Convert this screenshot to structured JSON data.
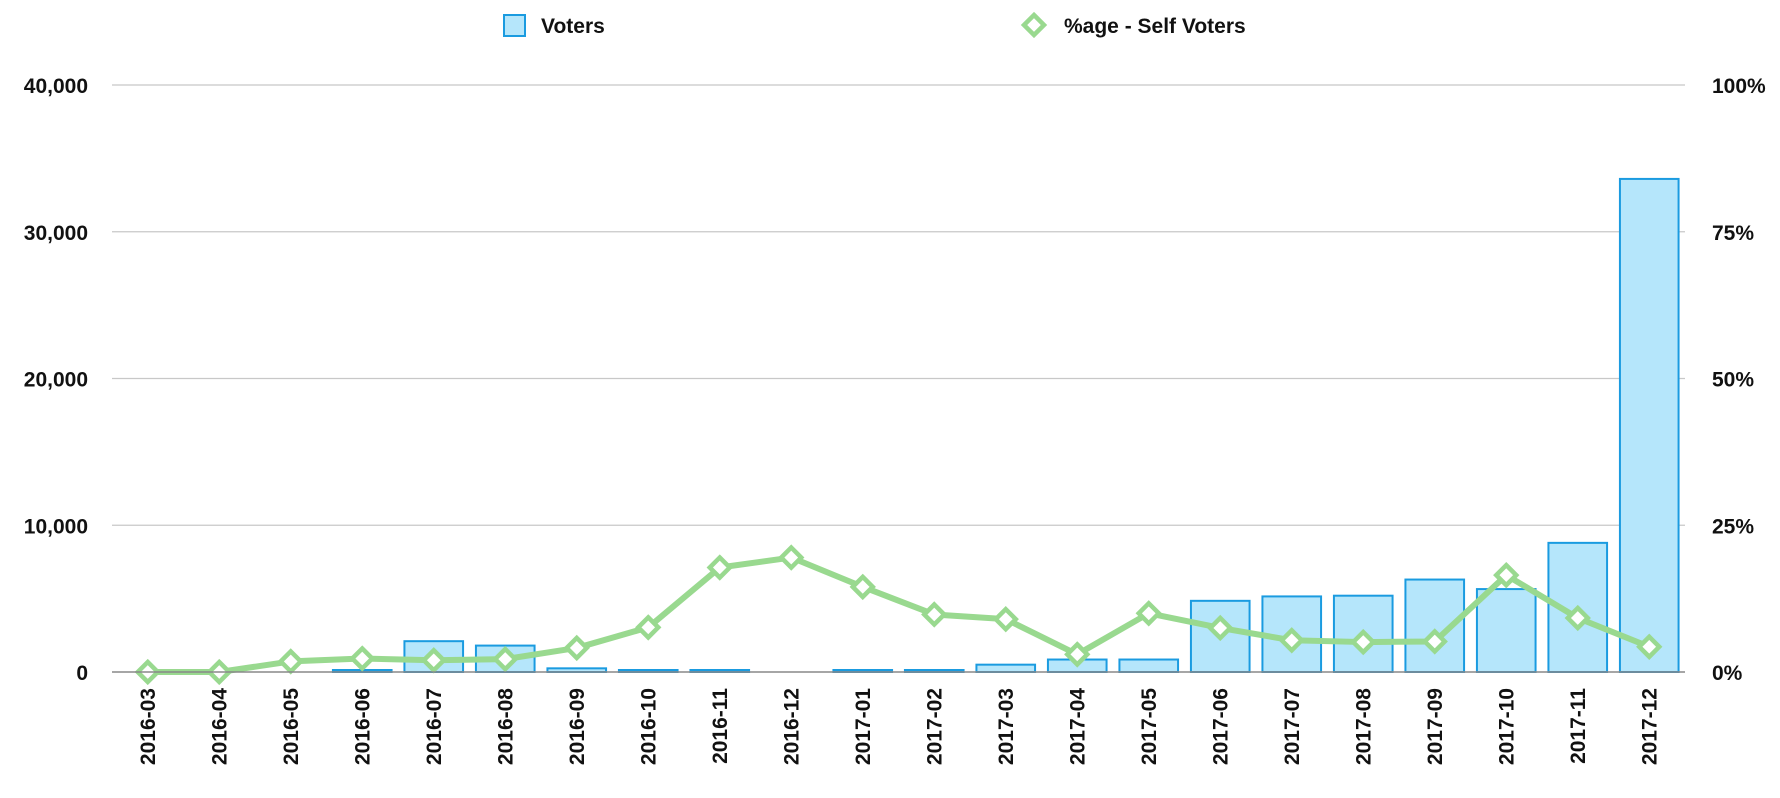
{
  "chart_data": {
    "type": "bar",
    "categories": [
      "2016-03",
      "2016-04",
      "2016-05",
      "2016-06",
      "2016-07",
      "2016-08",
      "2016-09",
      "2016-10",
      "2016-11",
      "2016-12",
      "2017-01",
      "2017-02",
      "2017-03",
      "2017-04",
      "2017-05",
      "2017-06",
      "2017-07",
      "2017-08",
      "2017-09",
      "2017-10",
      "2017-11",
      "2017-12"
    ],
    "series": [
      {
        "name": "Voters",
        "kind": "bar",
        "axis": "left",
        "color": "#b5e6fb",
        "stroke": "#1a9be0",
        "values": [
          0,
          0,
          0,
          100,
          2100,
          1800,
          250,
          100,
          100,
          0,
          100,
          100,
          500,
          850,
          850,
          4850,
          5150,
          5200,
          6300,
          5650,
          8800,
          33600
        ]
      },
      {
        "name": "%age - Self Voters",
        "kind": "line",
        "axis": "right",
        "color": "#99d98f",
        "values": [
          0,
          0,
          1.8,
          2.3,
          2.0,
          2.2,
          4.1,
          7.6,
          17.8,
          19.5,
          14.5,
          9.8,
          9.0,
          3.0,
          10.0,
          7.5,
          5.4,
          5.1,
          5.2,
          16.5,
          9.2,
          4.3
        ]
      }
    ],
    "y_left": {
      "min": 0,
      "max": 40000,
      "ticks": [
        0,
        10000,
        20000,
        30000,
        40000
      ],
      "tick_labels": [
        "0",
        "10,000",
        "20,000",
        "30,000",
        "40,000"
      ]
    },
    "y_right": {
      "min": 0,
      "max": 100,
      "ticks": [
        0,
        25,
        50,
        75,
        100
      ],
      "tick_labels": [
        "0%",
        "25%",
        "50%",
        "75%",
        "100%"
      ]
    },
    "title": "",
    "xlabel": "",
    "ylabel": "",
    "grid": true,
    "legend_position": "top-center"
  }
}
